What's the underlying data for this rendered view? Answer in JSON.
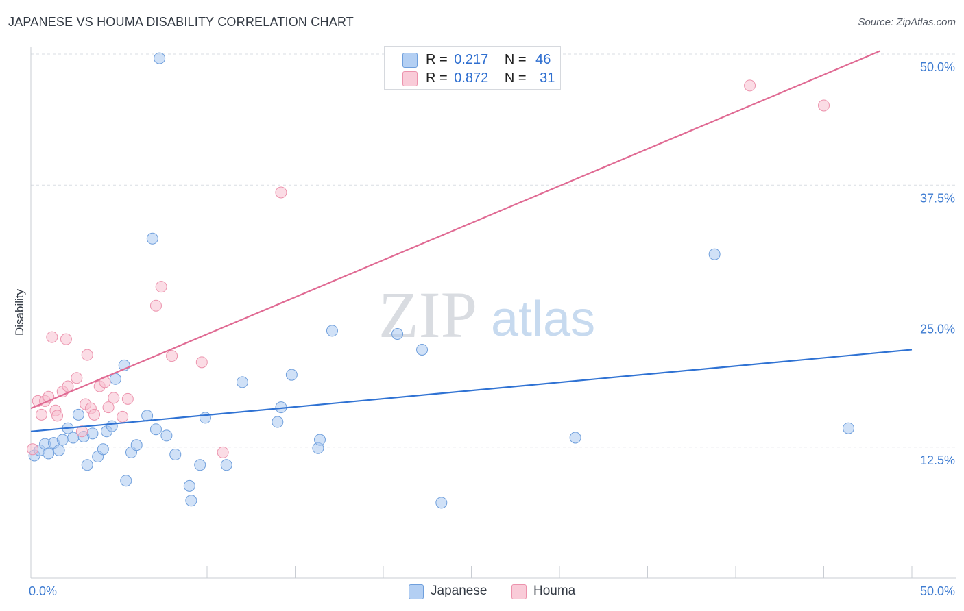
{
  "title": "JAPANESE VS HOUMA DISABILITY CORRELATION CHART",
  "source": "Source: ZipAtlas.com",
  "watermark": {
    "zip": "ZIP",
    "atlas": "atlas"
  },
  "legend": {
    "rows": [
      {
        "r_label": "R =",
        "r_value": "0.217",
        "n_label": "N =",
        "n_value": "46"
      },
      {
        "r_label": "R =",
        "r_value": "0.872",
        "n_label": "N =",
        "n_value": "31"
      }
    ]
  },
  "chart_data": {
    "type": "scatter",
    "title": "JAPANESE VS HOUMA DISABILITY CORRELATION CHART",
    "xlabel": "",
    "ylabel": "Disability",
    "xlim": [
      0,
      50
    ],
    "ylim": [
      0,
      50
    ],
    "x_tick_labels": [
      "0.0%",
      "50.0%"
    ],
    "y_ticks": [
      12.5,
      25.0,
      37.5,
      50.0
    ],
    "y_tick_labels": [
      "12.5%",
      "25.0%",
      "37.5%",
      "50.0%"
    ],
    "colors": {
      "japanese_fill": "#a9c8f0",
      "japanese_stroke": "#6f9fdc",
      "japanese_line": "#2f72d3",
      "houma_fill": "#f7c0d0",
      "houma_stroke": "#ec93ad",
      "houma_line": "#e06a93"
    },
    "series": [
      {
        "name": "Japanese",
        "r": 0.217,
        "n": 46,
        "trend": {
          "x0": 0,
          "y0": 14.0,
          "x1": 50,
          "y1": 21.8
        },
        "points": [
          [
            0.2,
            11.7
          ],
          [
            0.5,
            12.2
          ],
          [
            0.8,
            12.8
          ],
          [
            1.0,
            11.9
          ],
          [
            1.3,
            12.9
          ],
          [
            1.6,
            12.2
          ],
          [
            1.8,
            13.2
          ],
          [
            2.1,
            14.3
          ],
          [
            2.4,
            13.4
          ],
          [
            2.7,
            15.6
          ],
          [
            3.0,
            13.5
          ],
          [
            3.2,
            10.8
          ],
          [
            3.5,
            13.8
          ],
          [
            3.8,
            11.6
          ],
          [
            4.1,
            12.3
          ],
          [
            4.3,
            14.0
          ],
          [
            4.6,
            14.5
          ],
          [
            4.8,
            19.0
          ],
          [
            5.3,
            20.3
          ],
          [
            5.4,
            9.3
          ],
          [
            5.7,
            12.0
          ],
          [
            6.0,
            12.7
          ],
          [
            6.6,
            15.5
          ],
          [
            7.1,
            14.2
          ],
          [
            7.3,
            49.6
          ],
          [
            7.7,
            13.6
          ],
          [
            8.2,
            11.8
          ],
          [
            9.0,
            8.8
          ],
          [
            9.1,
            7.4
          ],
          [
            9.6,
            10.8
          ],
          [
            9.9,
            15.3
          ],
          [
            11.1,
            10.8
          ],
          [
            12.0,
            18.7
          ],
          [
            14.0,
            14.9
          ],
          [
            14.2,
            16.3
          ],
          [
            14.8,
            19.4
          ],
          [
            16.3,
            12.4
          ],
          [
            16.4,
            13.2
          ],
          [
            17.1,
            23.6
          ],
          [
            20.8,
            23.3
          ],
          [
            22.2,
            21.8
          ],
          [
            23.3,
            7.2
          ],
          [
            30.9,
            13.4
          ],
          [
            38.8,
            30.9
          ],
          [
            46.4,
            14.3
          ],
          [
            6.9,
            32.4
          ]
        ]
      },
      {
        "name": "Houma",
        "r": 0.872,
        "n": 31,
        "trend": {
          "x0": 0,
          "y0": 16.2,
          "x1": 48.2,
          "y1": 50.3
        },
        "points": [
          [
            0.1,
            12.3
          ],
          [
            0.4,
            16.9
          ],
          [
            0.6,
            15.6
          ],
          [
            0.8,
            16.9
          ],
          [
            1.0,
            17.3
          ],
          [
            1.2,
            23.0
          ],
          [
            1.4,
            16.0
          ],
          [
            1.5,
            15.5
          ],
          [
            1.8,
            17.8
          ],
          [
            2.0,
            22.8
          ],
          [
            2.1,
            18.3
          ],
          [
            2.6,
            19.1
          ],
          [
            2.9,
            14.0
          ],
          [
            3.1,
            16.6
          ],
          [
            3.2,
            21.3
          ],
          [
            3.4,
            16.2
          ],
          [
            3.6,
            15.6
          ],
          [
            3.9,
            18.3
          ],
          [
            4.2,
            18.7
          ],
          [
            4.4,
            16.3
          ],
          [
            4.7,
            17.2
          ],
          [
            5.2,
            15.4
          ],
          [
            5.5,
            17.1
          ],
          [
            7.1,
            26.0
          ],
          [
            7.4,
            27.8
          ],
          [
            8.0,
            21.2
          ],
          [
            9.7,
            20.6
          ],
          [
            10.9,
            12.0
          ],
          [
            14.2,
            36.8
          ],
          [
            40.8,
            47.0
          ],
          [
            45.0,
            45.1
          ]
        ]
      }
    ]
  },
  "bottom_legend": [
    {
      "label": "Japanese"
    },
    {
      "label": "Houma"
    }
  ]
}
